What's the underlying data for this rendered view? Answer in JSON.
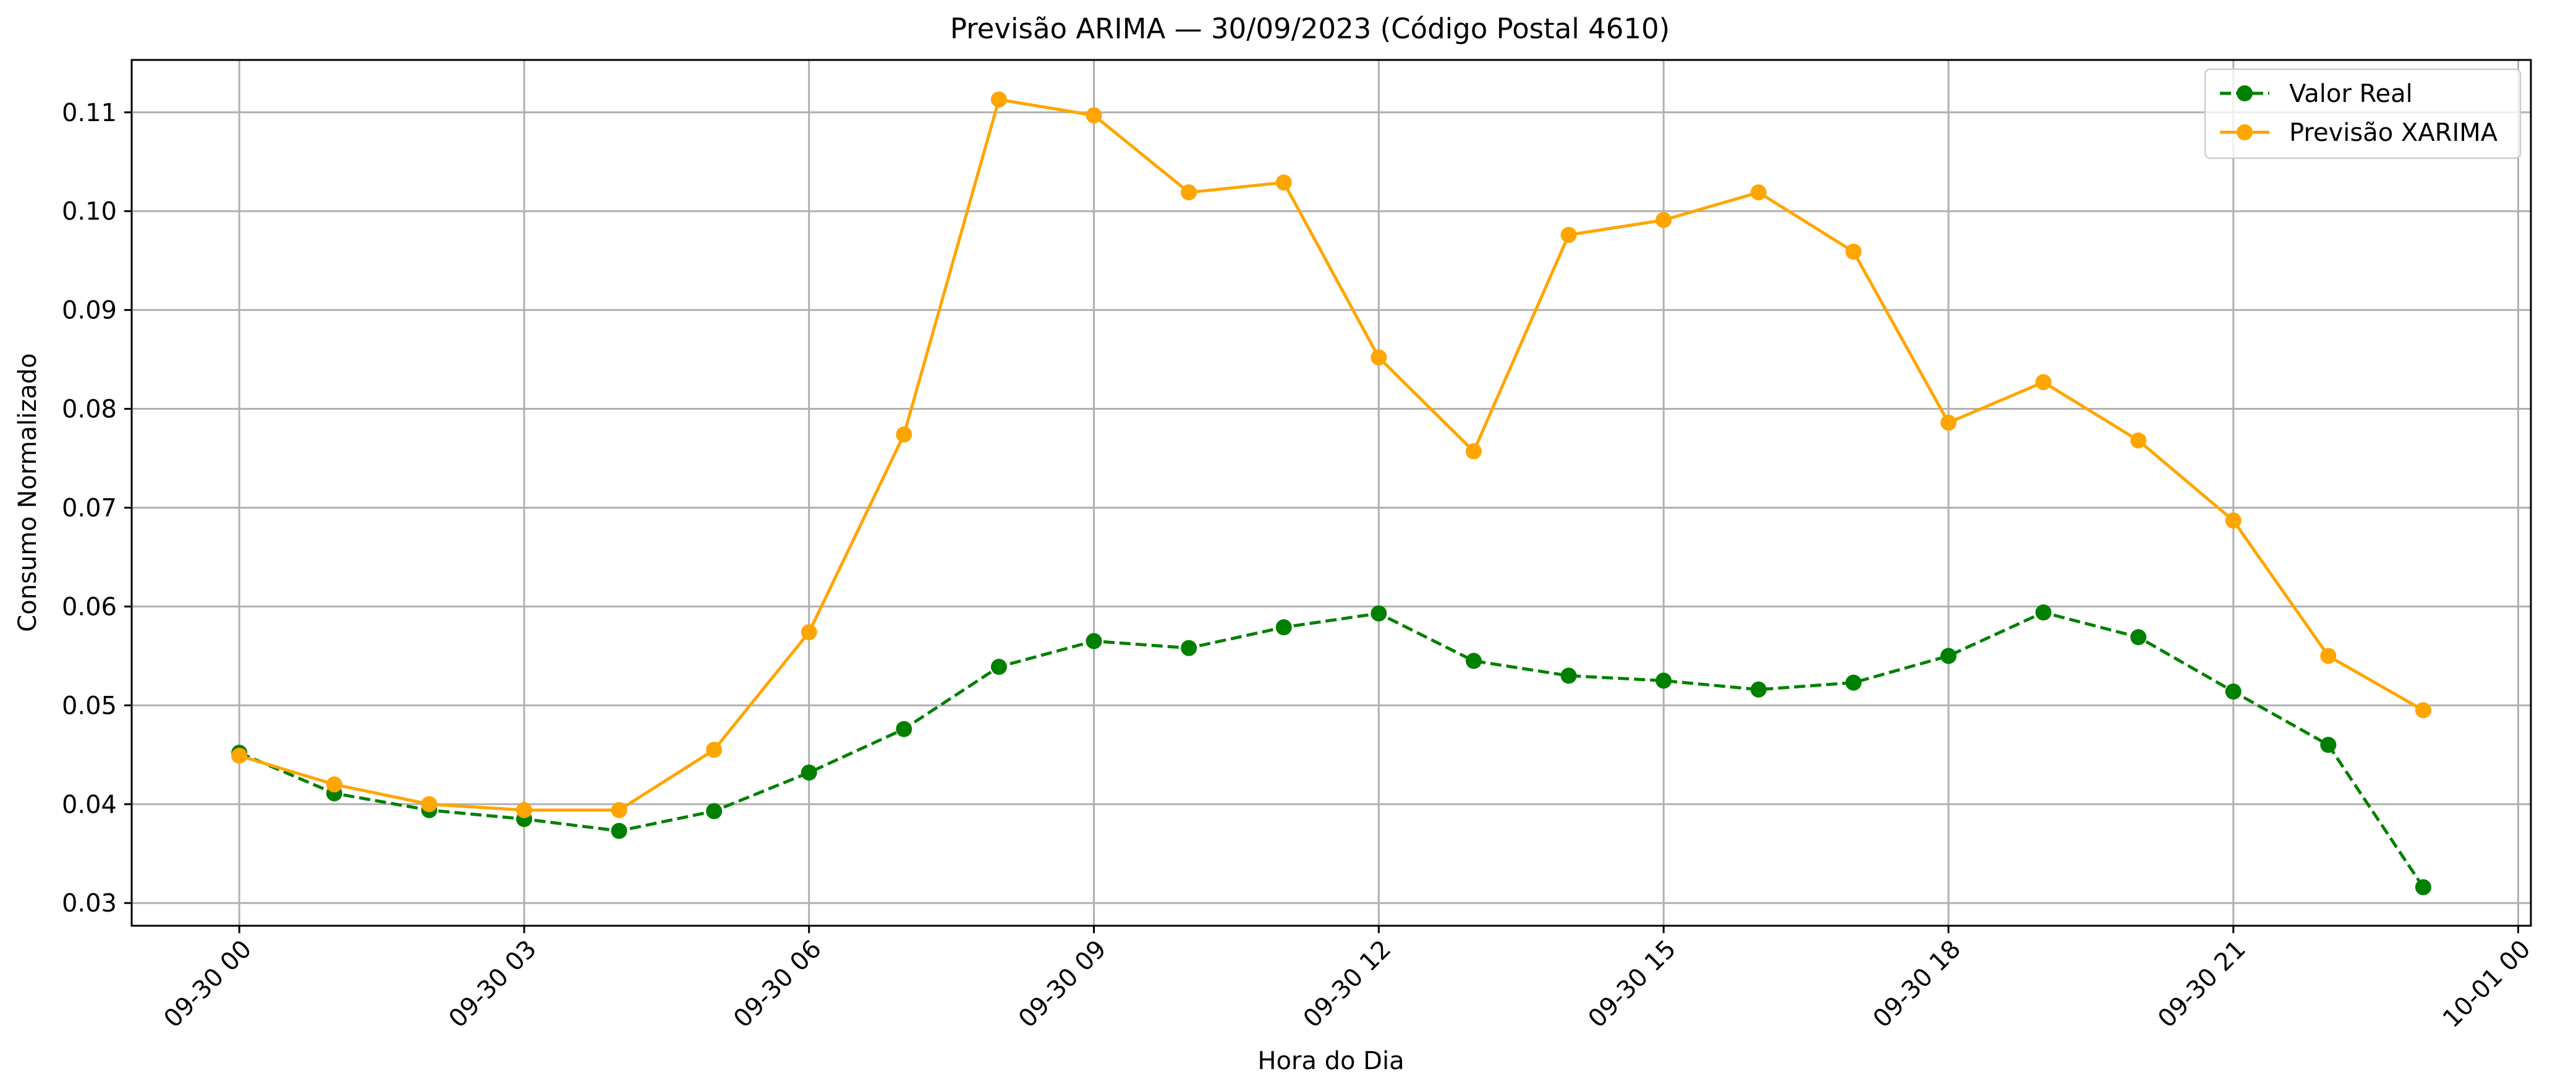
{
  "chart_data": {
    "type": "line",
    "title": "Previsão ARIMA — 30/09/2023 (Código Postal 4610)",
    "xlabel": "Hora do Dia",
    "ylabel": "Consumo Normalizado",
    "x": [
      "09-30 00:00",
      "09-30 01:00",
      "09-30 02:00",
      "09-30 03:00",
      "09-30 04:00",
      "09-30 05:00",
      "09-30 06:00",
      "09-30 07:00",
      "09-30 08:00",
      "09-30 09:00",
      "09-30 10:00",
      "09-30 11:00",
      "09-30 12:00",
      "09-30 13:00",
      "09-30 14:00",
      "09-30 15:00",
      "09-30 16:00",
      "09-30 17:00",
      "09-30 18:00",
      "09-30 19:00",
      "09-30 20:00",
      "09-30 21:00",
      "09-30 22:00",
      "09-30 23:00"
    ],
    "xlim": [
      "09-29 22:52",
      "10-01 00:08"
    ],
    "ylim": [
      0.0277,
      0.1153
    ],
    "x_ticks": [
      "09-30 00",
      "09-30 03",
      "09-30 06",
      "09-30 09",
      "09-30 12",
      "09-30 15",
      "09-30 18",
      "09-30 21",
      "10-01 00"
    ],
    "y_ticks": [
      "0.03",
      "0.04",
      "0.05",
      "0.06",
      "0.07",
      "0.08",
      "0.09",
      "0.10",
      "0.11"
    ],
    "grid": true,
    "legend_position": "top-right",
    "series": [
      {
        "name": "Valor Real",
        "color": "#008000",
        "line_style": "dashed",
        "marker": "circle",
        "values": [
          0.0452,
          0.0411,
          0.0394,
          0.0385,
          0.0373,
          0.0393,
          0.0432,
          0.0476,
          0.0539,
          0.0565,
          0.0558,
          0.0579,
          0.0593,
          0.0545,
          0.053,
          0.0525,
          0.0516,
          0.0523,
          0.055,
          0.0594,
          0.0569,
          0.0514,
          0.046,
          0.0316
        ]
      },
      {
        "name": "Previsão XARIMA",
        "color": "#FFA500",
        "line_style": "solid",
        "marker": "circle",
        "values": [
          0.0449,
          0.042,
          0.04,
          0.0394,
          0.0394,
          0.0455,
          0.0574,
          0.0774,
          0.1113,
          0.1097,
          0.1019,
          0.1029,
          0.0852,
          0.0757,
          0.0976,
          0.0991,
          0.1019,
          0.0959,
          0.0786,
          0.0827,
          0.0768,
          0.0687,
          0.055,
          0.0495
        ]
      }
    ]
  }
}
